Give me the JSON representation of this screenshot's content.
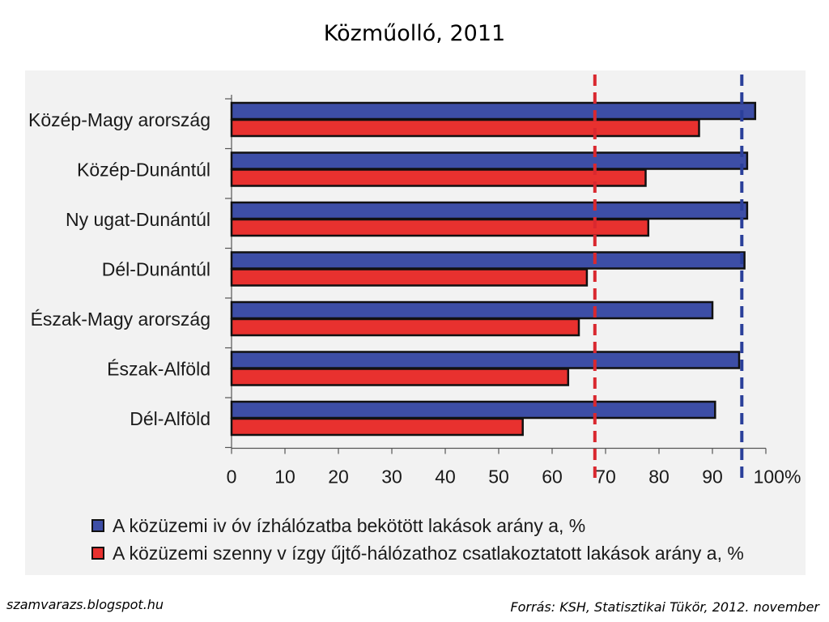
{
  "title": "Közműolló, 2011",
  "footer": {
    "left": "szamvarazs.blogspot.hu",
    "right": "Forrás: KSH, Statisztikai Tükör, 2012. november"
  },
  "colors": {
    "water": "#3d4ea6",
    "sewer": "#e8312f",
    "bar_border": "#111111",
    "chart_background": "#f2f2f2",
    "water_reference_line": "#2a3f9a",
    "sewer_reference_line": "#d9282f"
  },
  "chart_data": {
    "type": "bar",
    "orientation": "horizontal",
    "categories": [
      "Közép-Magy arország",
      "Közép-Dunántúl",
      "Ny ugat-Dunántúl",
      "Dél-Dunántúl",
      "Észak-Magy arország",
      "Észak-Alföld",
      "Dél-Alföld"
    ],
    "series": [
      {
        "name": "A közüzemi iv óv ízhálózatba bekötött lakások arány a, %",
        "values": [
          98,
          96.5,
          96.5,
          96,
          90,
          95,
          90.5
        ]
      },
      {
        "name": "A közüzemi szenny v ízgy űjtő-hálózathoz csatlakoztatott lakások arány a, %",
        "values": [
          87.5,
          77.5,
          78,
          66.5,
          65,
          63,
          54.5
        ]
      }
    ],
    "reference_lines": [
      {
        "series_index": 1,
        "value": 68,
        "style": "dashed"
      },
      {
        "series_index": 0,
        "value": 95.5,
        "style": "dashed"
      }
    ],
    "xlim": [
      0,
      100
    ],
    "xticks": [
      "0",
      "10",
      "20",
      "30",
      "40",
      "50",
      "60",
      "70",
      "80",
      "90",
      "100%"
    ],
    "grid": false,
    "legend_position": "bottom"
  }
}
